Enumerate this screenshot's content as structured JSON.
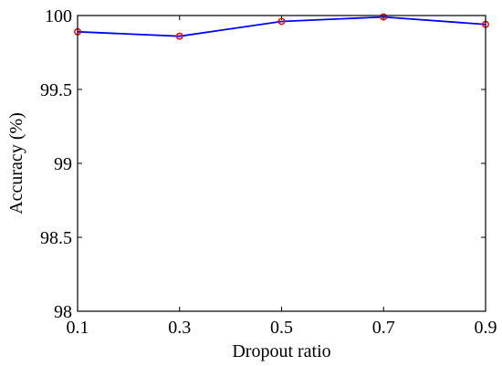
{
  "chart_data": {
    "type": "line",
    "title": "",
    "xlabel": "Dropout ratio",
    "ylabel": "Accuracy (%)",
    "xlim": [
      0.1,
      0.9
    ],
    "ylim": [
      98,
      100
    ],
    "x_ticks": [
      "0.1",
      "0.3",
      "0.5",
      "0.7",
      "0.9"
    ],
    "y_ticks": [
      "98",
      "98.5",
      "99",
      "99.5",
      "100"
    ],
    "grid": false,
    "legend": "none",
    "series": [
      {
        "x": [
          0.1,
          0.3,
          0.5,
          0.7,
          0.9
        ],
        "y": [
          99.89,
          99.86,
          99.96,
          99.99,
          99.94
        ],
        "line_color": "#0000ff",
        "marker": "circle",
        "marker_color": "#ff0000"
      }
    ]
  }
}
